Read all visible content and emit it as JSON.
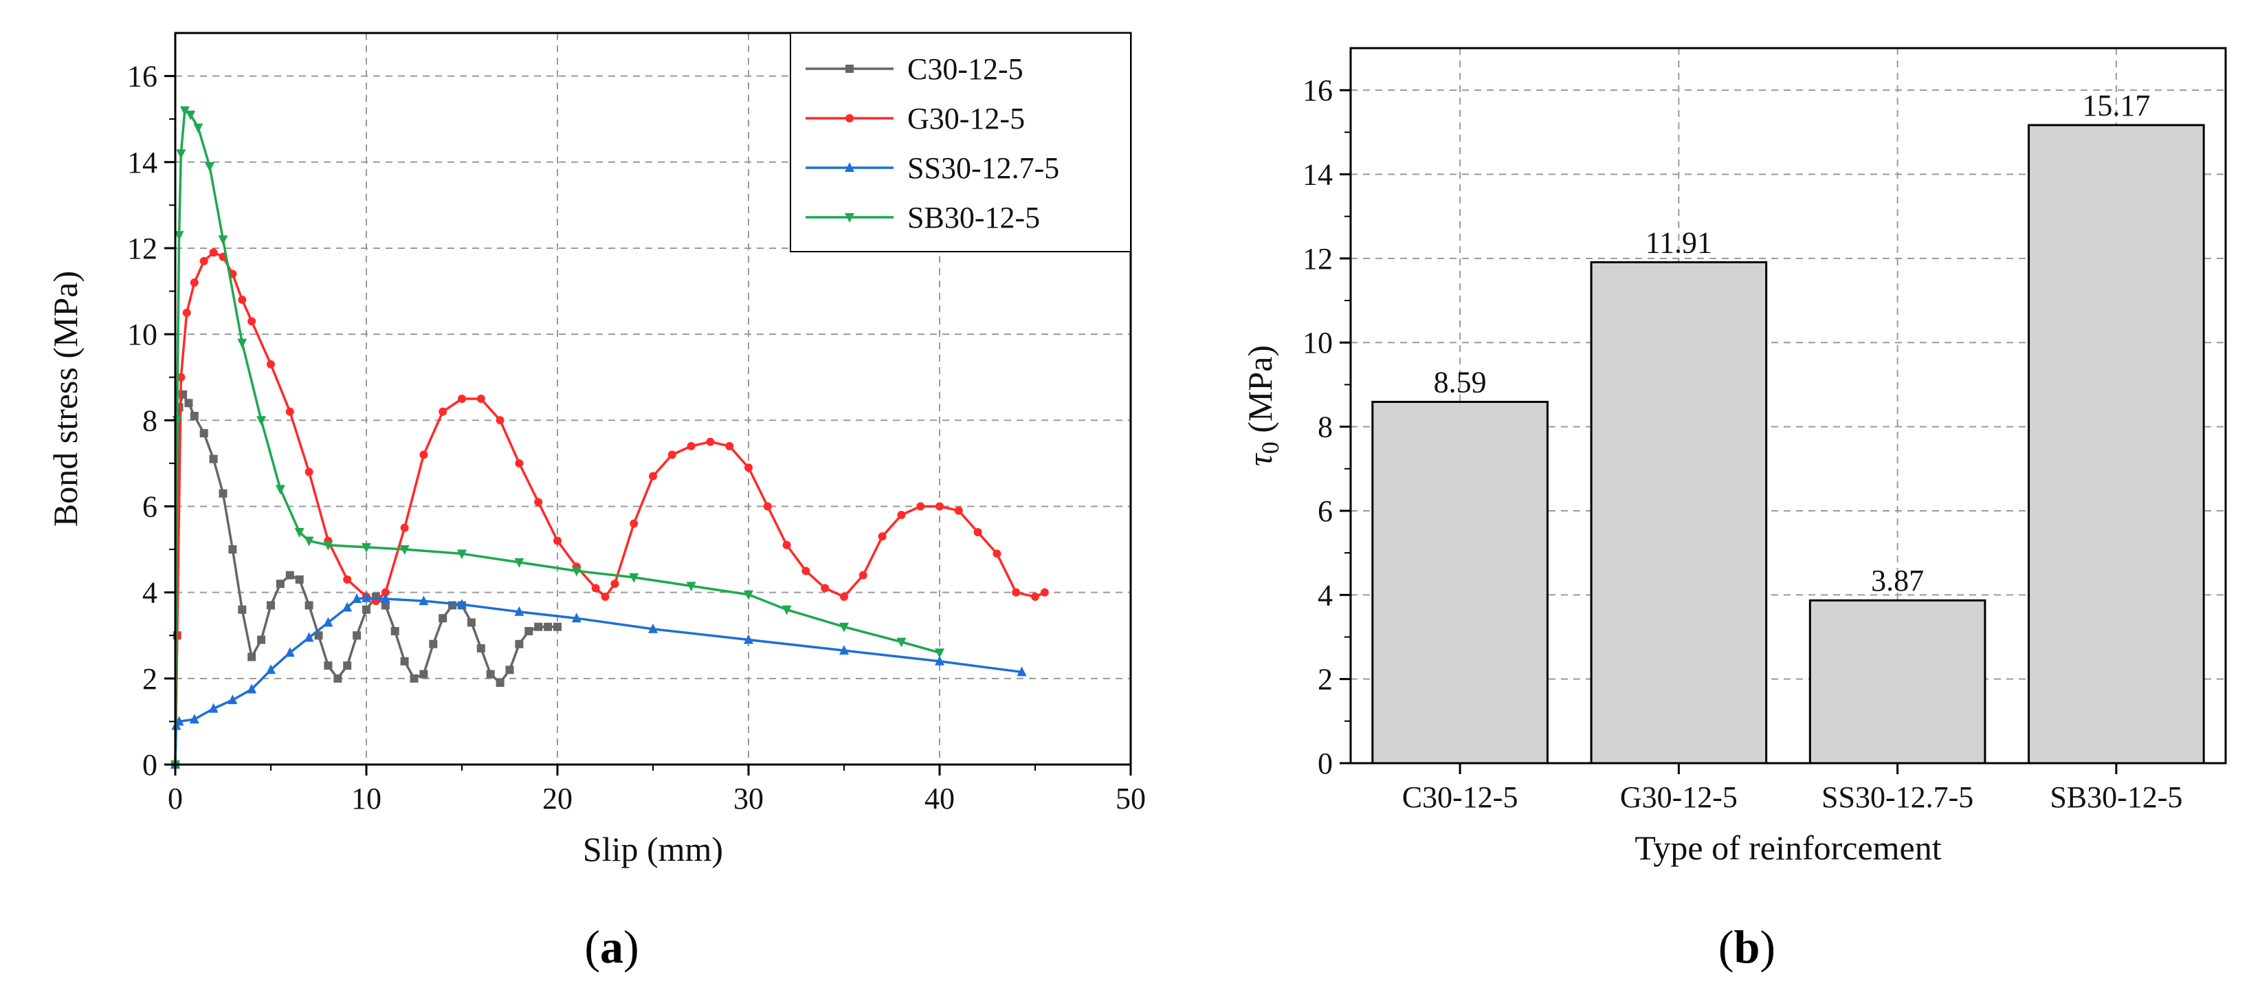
{
  "chart_data": [
    {
      "type": "line",
      "panel_label": "a",
      "xlabel": "Slip (mm)",
      "ylabel": "Bond stress (MPa)",
      "xlim": [
        0,
        50
      ],
      "ylim": [
        0,
        17
      ],
      "xticks": [
        0,
        10,
        20,
        30,
        40,
        50
      ],
      "yticks": [
        0,
        2,
        4,
        6,
        8,
        10,
        12,
        14,
        16
      ],
      "grid": true,
      "legend_position": "top-right",
      "series": [
        {
          "name": "C30-12-5",
          "color": "#666666",
          "marker": "square",
          "x": [
            0,
            0.1,
            0.2,
            0.4,
            0.7,
            1,
            1.5,
            2,
            2.5,
            3,
            3.5,
            4,
            4.5,
            5,
            5.5,
            6,
            6.5,
            7,
            7.5,
            8,
            8.5,
            9,
            9.5,
            10,
            10.5,
            11,
            11.5,
            12,
            12.5,
            13,
            13.5,
            14,
            14.5,
            15,
            15.5,
            16,
            16.5,
            17,
            17.5,
            18,
            18.5,
            19,
            19.5,
            20
          ],
          "y": [
            0,
            3,
            8.3,
            8.6,
            8.4,
            8.1,
            7.7,
            7.1,
            6.3,
            5.0,
            3.6,
            2.5,
            2.9,
            3.7,
            4.2,
            4.4,
            4.3,
            3.7,
            3.0,
            2.3,
            2.0,
            2.3,
            3.0,
            3.6,
            3.9,
            3.7,
            3.1,
            2.4,
            2.0,
            2.1,
            2.8,
            3.4,
            3.7,
            3.7,
            3.3,
            2.7,
            2.1,
            1.9,
            2.2,
            2.8,
            3.1,
            3.2,
            3.2,
            3.2
          ]
        },
        {
          "name": "G30-12-5",
          "color": "#ff2a2a",
          "marker": "circle",
          "x": [
            0,
            0.1,
            0.3,
            0.6,
            1,
            1.5,
            2,
            2.5,
            3,
            3.5,
            4,
            5,
            6,
            7,
            8,
            9,
            10,
            10.5,
            11,
            12,
            13,
            14,
            15,
            16,
            17,
            18,
            19,
            20,
            21,
            22,
            22.5,
            23,
            24,
            25,
            26,
            27,
            28,
            29,
            30,
            31,
            32,
            33,
            34,
            35,
            36,
            37,
            38,
            39,
            40,
            41,
            42,
            43,
            44,
            45,
            45.5
          ],
          "y": [
            0,
            3,
            9.0,
            10.5,
            11.2,
            11.7,
            11.9,
            11.8,
            11.4,
            10.8,
            10.3,
            9.3,
            8.2,
            6.8,
            5.2,
            4.3,
            3.9,
            3.8,
            4.0,
            5.5,
            7.2,
            8.2,
            8.5,
            8.5,
            8.0,
            7.0,
            6.1,
            5.2,
            4.6,
            4.1,
            3.9,
            4.2,
            5.6,
            6.7,
            7.2,
            7.4,
            7.5,
            7.4,
            6.9,
            6.0,
            5.1,
            4.5,
            4.1,
            3.9,
            4.4,
            5.3,
            5.8,
            6.0,
            6.0,
            5.9,
            5.4,
            4.9,
            4.0,
            3.9,
            4.0
          ]
        },
        {
          "name": "SS30-12.7-5",
          "color": "#1f6fd8",
          "marker": "triangle",
          "x": [
            0,
            0.05,
            0.2,
            1,
            2,
            3,
            4,
            5,
            6,
            7,
            8,
            9,
            9.5,
            10,
            11,
            13,
            15,
            18,
            21,
            25,
            30,
            35,
            40,
            44.3
          ],
          "y": [
            0,
            0.9,
            1.0,
            1.05,
            1.3,
            1.5,
            1.75,
            2.2,
            2.6,
            2.95,
            3.3,
            3.65,
            3.85,
            3.87,
            3.85,
            3.8,
            3.72,
            3.55,
            3.4,
            3.15,
            2.9,
            2.65,
            2.4,
            2.15
          ]
        },
        {
          "name": "SB30-12-5",
          "color": "#1fa84f",
          "marker": "triangle-down",
          "x": [
            0,
            0.1,
            0.2,
            0.3,
            0.5,
            0.8,
            1.2,
            1.8,
            2.5,
            3.5,
            4.5,
            5.5,
            6.5,
            7,
            8,
            10,
            12,
            15,
            18,
            21,
            24,
            27,
            30,
            32,
            35,
            38,
            40
          ],
          "y": [
            0,
            8,
            12.3,
            14.2,
            15.2,
            15.1,
            14.8,
            13.9,
            12.2,
            9.8,
            8.0,
            6.4,
            5.4,
            5.2,
            5.1,
            5.05,
            5.0,
            4.9,
            4.7,
            4.5,
            4.35,
            4.15,
            3.95,
            3.6,
            3.2,
            2.85,
            2.6
          ]
        }
      ]
    },
    {
      "type": "bar",
      "panel_label": "b",
      "xlabel": "Type of reinforcement",
      "ylabel_symbol": "τ",
      "ylabel_sub": "0",
      "ylabel_unit": " (MPa)",
      "ylim": [
        0,
        17
      ],
      "yticks": [
        0,
        2,
        4,
        6,
        8,
        10,
        12,
        14,
        16
      ],
      "grid": true,
      "bar_color": "#d3d3d3",
      "categories": [
        "C30-12-5",
        "G30-12-5",
        "SS30-12.7-5",
        "SB30-12-5"
      ],
      "values": [
        8.59,
        11.91,
        3.87,
        15.17
      ],
      "data_labels": [
        "8.59",
        "11.91",
        "3.87",
        "15.17"
      ]
    }
  ]
}
